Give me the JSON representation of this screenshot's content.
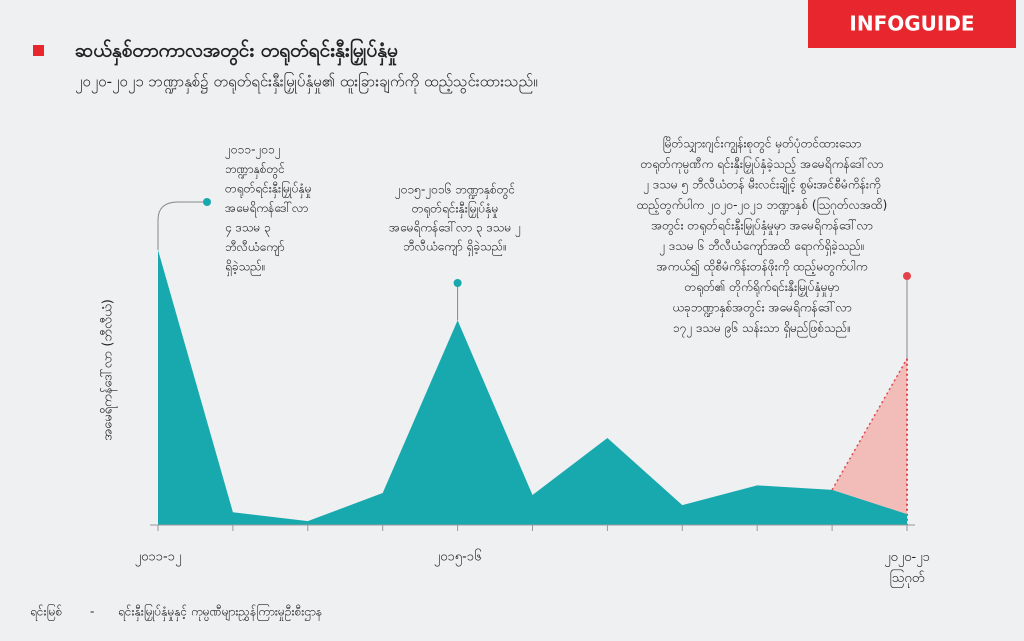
{
  "logo": "INFOGUIDE",
  "chart_data": {
    "type": "area",
    "title": "ဆယ်နှစ်တာကာလအတွင်း တရုတ်ရင်းနှီးမြှုပ်နှံမှု",
    "subtitle": "၂၀၂၀-၂၀၂၁ ဘဏ္ဍာနှစ်၌ တရုတ်ရင်းနှီးမြှုပ်နှံမှု၏ ထူးခြားချက်ကို ထည့်သွင်းထားသည်။",
    "y_label": "အမေရိကန်ဒေါ်လာ (ဘီလီယံ)",
    "categories": [
      "၂၀၁၁-၁၂",
      null,
      null,
      null,
      "၂၀၁၅-၁၆",
      null,
      null,
      null,
      null,
      null,
      "၂၀၂၀-၂၁\nဩဂုတ်"
    ],
    "series": [
      {
        "color": "#17a9ae",
        "values": [
          4.3,
          0.2,
          0.06,
          0.5,
          3.2,
          0.47,
          1.36,
          0.31,
          0.62,
          0.55,
          0.17
        ]
      },
      {
        "color": "#f2b3ae",
        "values": [
          null,
          null,
          null,
          null,
          null,
          null,
          null,
          null,
          null,
          0.55,
          2.6
        ]
      }
    ],
    "ylim": [
      0,
      4.8
    ],
    "annotations": [
      [
        "၂၀၁၁-၂၀၁၂",
        "ဘဏ္ဍာနှစ်တွင်",
        "တရုတ်ရင်းနှီးမြှုပ်နှံမှု",
        "အမေရိကန်ဒေါ်လာ",
        "၄ ဒသမ ၃",
        "ဘီလီယံကျော်",
        "ရှိခဲ့သည်။"
      ],
      [
        "၂၀၁၅-၂၀၁၆ ဘဏ္ဍာနှစ်တွင်",
        "တရုတ်ရင်းနှီးမြှုပ်နှံမှု",
        "အမေရိကန်ဒေါ်လာ ၃ ဒသမ ၂",
        "ဘီလီယံကျော် ရှိခဲ့သည်။"
      ],
      [
        "မြိတ်သျှားဂျင်းကျွန်းစုတွင် မှတ်ပုံတင်ထားသော",
        "တရုတ်ကုမ္ပဏီက ရင်းနှီးမြှုပ်နှံခဲ့သည့် အမေရိကန်ဒေါ်လာ",
        "၂ ဒသမ ၅ ဘီလီယံတန် မီးလင်းချိုင့် စွမ်းအင်စီမံကိန်းကို",
        "ထည့်တွက်ပါက ၂၀၂၀-၂၀၂၁ ဘဏ္ဍာနှစ် (ဩဂုတ်လအထိ)",
        "အတွင်း တရုတ်ရင်းနှီးမြှုပ်နှံမှုမှာ အမေရိကန်ဒေါ်လာ",
        "၂ ဒသမ ၆ ဘီလီယံကျော်အထိ ရောက်ရှိခဲ့သည်။",
        "အကယ်၍ ထိုစီမံကိန်းတန်ဖိုးကို ထည့်မတွက်ပါက",
        "တရုတ်၏ တိုက်ရိုက်ရင်းနှီးမြှုပ်နှံမှုမှာ",
        "ယခုဘဏ္ဍာနှစ်အတွင်း အမေရိကန်ဒေါ်လာ",
        "၁၇၂ ဒသမ ၉၆ သန်းသာ ရှိမည်ဖြစ်သည်။"
      ]
    ],
    "source_label": "ရင်းမြစ်",
    "source": "ရင်းနှီးမြှုပ်နှံမှုနှင့် ကုမ္ပဏီများညွှန်ကြားမှုဦးစီးဌာန"
  }
}
